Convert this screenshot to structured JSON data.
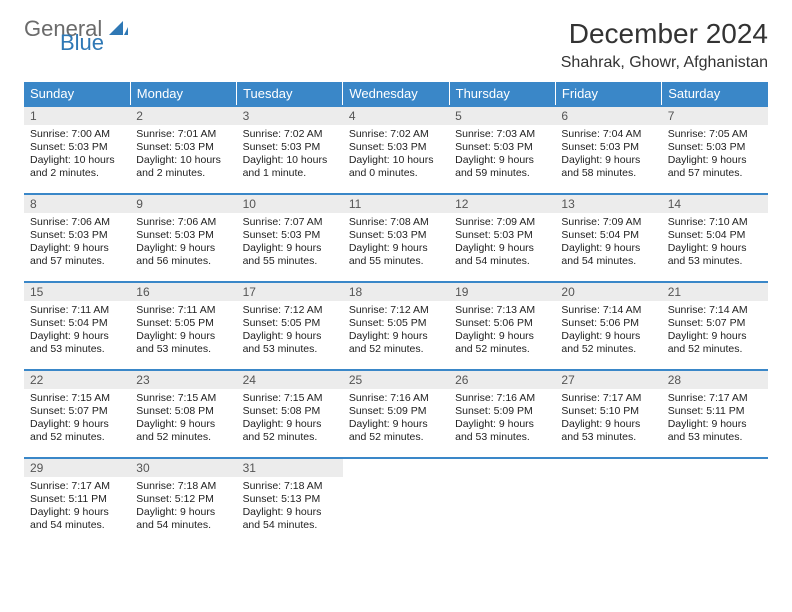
{
  "brand": {
    "general": "General",
    "blue": "Blue"
  },
  "title": "December 2024",
  "location": "Shahrak, Ghowr, Afghanistan",
  "colors": {
    "header_bg": "#3a87c8",
    "header_text": "#ffffff",
    "daynum_bg": "#ececec",
    "row_divider": "#3a87c8",
    "logo_blue": "#2f78b5",
    "logo_gray": "#6b6b6b"
  },
  "day_headers": [
    "Sunday",
    "Monday",
    "Tuesday",
    "Wednesday",
    "Thursday",
    "Friday",
    "Saturday"
  ],
  "weeks": [
    [
      {
        "n": "1",
        "sunrise": "7:00 AM",
        "sunset": "5:03 PM",
        "daylight": "10 hours and 2 minutes."
      },
      {
        "n": "2",
        "sunrise": "7:01 AM",
        "sunset": "5:03 PM",
        "daylight": "10 hours and 2 minutes."
      },
      {
        "n": "3",
        "sunrise": "7:02 AM",
        "sunset": "5:03 PM",
        "daylight": "10 hours and 1 minute."
      },
      {
        "n": "4",
        "sunrise": "7:02 AM",
        "sunset": "5:03 PM",
        "daylight": "10 hours and 0 minutes."
      },
      {
        "n": "5",
        "sunrise": "7:03 AM",
        "sunset": "5:03 PM",
        "daylight": "9 hours and 59 minutes."
      },
      {
        "n": "6",
        "sunrise": "7:04 AM",
        "sunset": "5:03 PM",
        "daylight": "9 hours and 58 minutes."
      },
      {
        "n": "7",
        "sunrise": "7:05 AM",
        "sunset": "5:03 PM",
        "daylight": "9 hours and 57 minutes."
      }
    ],
    [
      {
        "n": "8",
        "sunrise": "7:06 AM",
        "sunset": "5:03 PM",
        "daylight": "9 hours and 57 minutes."
      },
      {
        "n": "9",
        "sunrise": "7:06 AM",
        "sunset": "5:03 PM",
        "daylight": "9 hours and 56 minutes."
      },
      {
        "n": "10",
        "sunrise": "7:07 AM",
        "sunset": "5:03 PM",
        "daylight": "9 hours and 55 minutes."
      },
      {
        "n": "11",
        "sunrise": "7:08 AM",
        "sunset": "5:03 PM",
        "daylight": "9 hours and 55 minutes."
      },
      {
        "n": "12",
        "sunrise": "7:09 AM",
        "sunset": "5:03 PM",
        "daylight": "9 hours and 54 minutes."
      },
      {
        "n": "13",
        "sunrise": "7:09 AM",
        "sunset": "5:04 PM",
        "daylight": "9 hours and 54 minutes."
      },
      {
        "n": "14",
        "sunrise": "7:10 AM",
        "sunset": "5:04 PM",
        "daylight": "9 hours and 53 minutes."
      }
    ],
    [
      {
        "n": "15",
        "sunrise": "7:11 AM",
        "sunset": "5:04 PM",
        "daylight": "9 hours and 53 minutes."
      },
      {
        "n": "16",
        "sunrise": "7:11 AM",
        "sunset": "5:05 PM",
        "daylight": "9 hours and 53 minutes."
      },
      {
        "n": "17",
        "sunrise": "7:12 AM",
        "sunset": "5:05 PM",
        "daylight": "9 hours and 53 minutes."
      },
      {
        "n": "18",
        "sunrise": "7:12 AM",
        "sunset": "5:05 PM",
        "daylight": "9 hours and 52 minutes."
      },
      {
        "n": "19",
        "sunrise": "7:13 AM",
        "sunset": "5:06 PM",
        "daylight": "9 hours and 52 minutes."
      },
      {
        "n": "20",
        "sunrise": "7:14 AM",
        "sunset": "5:06 PM",
        "daylight": "9 hours and 52 minutes."
      },
      {
        "n": "21",
        "sunrise": "7:14 AM",
        "sunset": "5:07 PM",
        "daylight": "9 hours and 52 minutes."
      }
    ],
    [
      {
        "n": "22",
        "sunrise": "7:15 AM",
        "sunset": "5:07 PM",
        "daylight": "9 hours and 52 minutes."
      },
      {
        "n": "23",
        "sunrise": "7:15 AM",
        "sunset": "5:08 PM",
        "daylight": "9 hours and 52 minutes."
      },
      {
        "n": "24",
        "sunrise": "7:15 AM",
        "sunset": "5:08 PM",
        "daylight": "9 hours and 52 minutes."
      },
      {
        "n": "25",
        "sunrise": "7:16 AM",
        "sunset": "5:09 PM",
        "daylight": "9 hours and 52 minutes."
      },
      {
        "n": "26",
        "sunrise": "7:16 AM",
        "sunset": "5:09 PM",
        "daylight": "9 hours and 53 minutes."
      },
      {
        "n": "27",
        "sunrise": "7:17 AM",
        "sunset": "5:10 PM",
        "daylight": "9 hours and 53 minutes."
      },
      {
        "n": "28",
        "sunrise": "7:17 AM",
        "sunset": "5:11 PM",
        "daylight": "9 hours and 53 minutes."
      }
    ],
    [
      {
        "n": "29",
        "sunrise": "7:17 AM",
        "sunset": "5:11 PM",
        "daylight": "9 hours and 54 minutes."
      },
      {
        "n": "30",
        "sunrise": "7:18 AM",
        "sunset": "5:12 PM",
        "daylight": "9 hours and 54 minutes."
      },
      {
        "n": "31",
        "sunrise": "7:18 AM",
        "sunset": "5:13 PM",
        "daylight": "9 hours and 54 minutes."
      },
      null,
      null,
      null,
      null
    ]
  ],
  "labels": {
    "sunrise": "Sunrise:",
    "sunset": "Sunset:",
    "daylight": "Daylight:"
  }
}
